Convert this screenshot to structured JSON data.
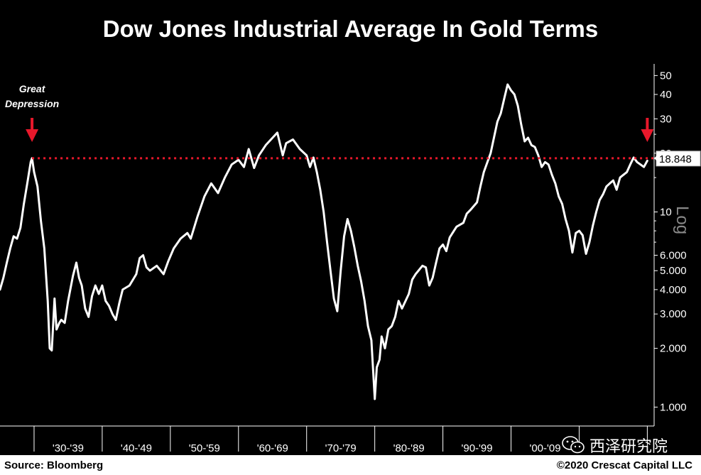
{
  "title": "Dow Jones Industrial Average In Gold Terms",
  "source": "Source: Bloomberg",
  "copyright": "©2020 Crescat Capital LLC",
  "watermark_text": "西泽研究院",
  "colors": {
    "background": "#000000",
    "line": "#ffffff",
    "highlight": "#e8182b",
    "axis": "#ffffff"
  },
  "chart_data": {
    "type": "line",
    "title": "Dow Jones Industrial Average In Gold Terms",
    "y_scale": "log",
    "y_axis_label": "Log",
    "ylim": [
      0.8,
      55
    ],
    "xlim": [
      1925,
      2021
    ],
    "y_ticks": [
      {
        "value": 50,
        "label": "50"
      },
      {
        "value": 40,
        "label": "40"
      },
      {
        "value": 30,
        "label": "30"
      },
      {
        "value": 20,
        "label": "20"
      },
      {
        "value": 10,
        "label": "10"
      },
      {
        "value": 6,
        "label": "6.000"
      },
      {
        "value": 5,
        "label": "5.000"
      },
      {
        "value": 4,
        "label": "4.000"
      },
      {
        "value": 3,
        "label": "3.000"
      },
      {
        "value": 2,
        "label": "2.000"
      },
      {
        "value": 1,
        "label": "1.000"
      }
    ],
    "decade_dividers": [
      1930,
      1940,
      1950,
      1960,
      1970,
      1980,
      1990,
      2000,
      2010,
      2020
    ],
    "decade_labels": [
      {
        "label": "'30-'39",
        "center": 1935
      },
      {
        "label": "'40-'49",
        "center": 1945
      },
      {
        "label": "'50-'59",
        "center": 1955
      },
      {
        "label": "'60-'69",
        "center": 1965
      },
      {
        "label": "'70-'79",
        "center": 1975
      },
      {
        "label": "'80-'89",
        "center": 1985
      },
      {
        "label": "'90-'99",
        "center": 1995
      },
      {
        "label": "'00-'09",
        "center": 2005
      }
    ],
    "reference_line": {
      "value": 18.848,
      "label": "18.848"
    },
    "annotations": [
      {
        "text": "Great Depression",
        "lines": [
          "Great",
          "Depression"
        ],
        "x": 1929.7,
        "arrow": true
      },
      {
        "text": "",
        "lines": [],
        "x": 2020.0,
        "arrow": true
      }
    ],
    "series": [
      {
        "values": [
          [
            1925.0,
            4.0
          ],
          [
            1925.5,
            4.6
          ],
          [
            1926.0,
            5.5
          ],
          [
            1926.5,
            6.5
          ],
          [
            1927.0,
            7.5
          ],
          [
            1927.5,
            7.3
          ],
          [
            1928.0,
            8.3
          ],
          [
            1928.5,
            11.0
          ],
          [
            1929.0,
            14.0
          ],
          [
            1929.5,
            18.0
          ],
          [
            1929.7,
            18.848
          ],
          [
            1930.0,
            16.0
          ],
          [
            1930.5,
            13.5
          ],
          [
            1931.0,
            9.0
          ],
          [
            1931.5,
            6.5
          ],
          [
            1932.0,
            3.5
          ],
          [
            1932.3,
            2.0
          ],
          [
            1932.6,
            1.95
          ],
          [
            1933.0,
            3.6
          ],
          [
            1933.3,
            2.5
          ],
          [
            1933.7,
            2.7
          ],
          [
            1934.0,
            2.8
          ],
          [
            1934.5,
            2.7
          ],
          [
            1935.0,
            3.5
          ],
          [
            1935.7,
            4.7
          ],
          [
            1936.2,
            5.5
          ],
          [
            1936.6,
            4.6
          ],
          [
            1937.0,
            4.2
          ],
          [
            1937.5,
            3.2
          ],
          [
            1938.0,
            2.9
          ],
          [
            1938.5,
            3.7
          ],
          [
            1939.0,
            4.2
          ],
          [
            1939.5,
            3.8
          ],
          [
            1940.0,
            4.2
          ],
          [
            1940.5,
            3.5
          ],
          [
            1941.0,
            3.3
          ],
          [
            1941.5,
            3.0
          ],
          [
            1942.0,
            2.8
          ],
          [
            1942.5,
            3.4
          ],
          [
            1943.0,
            4.0
          ],
          [
            1944.0,
            4.2
          ],
          [
            1945.0,
            4.8
          ],
          [
            1945.5,
            5.8
          ],
          [
            1946.0,
            6.0
          ],
          [
            1946.5,
            5.2
          ],
          [
            1947.0,
            5.0
          ],
          [
            1948.0,
            5.3
          ],
          [
            1949.0,
            4.8
          ],
          [
            1949.7,
            5.6
          ],
          [
            1950.5,
            6.5
          ],
          [
            1951.5,
            7.3
          ],
          [
            1952.5,
            7.8
          ],
          [
            1953.0,
            7.3
          ],
          [
            1954.0,
            9.5
          ],
          [
            1955.0,
            12.0
          ],
          [
            1956.0,
            14.0
          ],
          [
            1957.0,
            12.5
          ],
          [
            1958.0,
            15.0
          ],
          [
            1959.0,
            17.5
          ],
          [
            1960.0,
            18.5
          ],
          [
            1960.8,
            17.0
          ],
          [
            1961.5,
            21.0
          ],
          [
            1962.3,
            16.8
          ],
          [
            1963.0,
            19.5
          ],
          [
            1964.0,
            22.0
          ],
          [
            1965.0,
            24.0
          ],
          [
            1965.7,
            25.5
          ],
          [
            1966.5,
            19.5
          ],
          [
            1967.0,
            22.5
          ],
          [
            1968.0,
            23.5
          ],
          [
            1969.0,
            21.0
          ],
          [
            1970.0,
            19.5
          ],
          [
            1970.5,
            17.0
          ],
          [
            1971.0,
            19.0
          ],
          [
            1971.5,
            16.0
          ],
          [
            1972.0,
            13.0
          ],
          [
            1972.5,
            10.0
          ],
          [
            1973.0,
            7.0
          ],
          [
            1973.5,
            5.0
          ],
          [
            1974.0,
            3.6
          ],
          [
            1974.5,
            3.1
          ],
          [
            1975.0,
            5.0
          ],
          [
            1975.5,
            7.5
          ],
          [
            1976.0,
            9.2
          ],
          [
            1976.5,
            8.0
          ],
          [
            1977.0,
            6.6
          ],
          [
            1977.5,
            5.3
          ],
          [
            1978.0,
            4.4
          ],
          [
            1978.5,
            3.5
          ],
          [
            1979.0,
            2.6
          ],
          [
            1979.5,
            2.2
          ],
          [
            1980.0,
            1.1
          ],
          [
            1980.3,
            1.6
          ],
          [
            1980.7,
            1.75
          ],
          [
            1981.0,
            2.3
          ],
          [
            1981.5,
            2.0
          ],
          [
            1982.0,
            2.5
          ],
          [
            1982.5,
            2.6
          ],
          [
            1983.0,
            2.9
          ],
          [
            1983.5,
            3.5
          ],
          [
            1984.0,
            3.2
          ],
          [
            1985.0,
            3.8
          ],
          [
            1985.5,
            4.5
          ],
          [
            1986.0,
            4.8
          ],
          [
            1987.0,
            5.3
          ],
          [
            1987.5,
            5.2
          ],
          [
            1988.0,
            4.2
          ],
          [
            1988.5,
            4.6
          ],
          [
            1989.0,
            5.5
          ],
          [
            1989.5,
            6.5
          ],
          [
            1990.0,
            6.8
          ],
          [
            1990.5,
            6.3
          ],
          [
            1991.0,
            7.4
          ],
          [
            1992.0,
            8.4
          ],
          [
            1993.0,
            8.8
          ],
          [
            1993.5,
            9.8
          ],
          [
            1994.0,
            10.2
          ],
          [
            1995.0,
            11.2
          ],
          [
            1995.5,
            13.5
          ],
          [
            1996.0,
            16.0
          ],
          [
            1997.0,
            20.0
          ],
          [
            1998.0,
            29.0
          ],
          [
            1998.5,
            32.0
          ],
          [
            1999.0,
            38.0
          ],
          [
            1999.5,
            45.0
          ],
          [
            2000.0,
            42.0
          ],
          [
            2000.5,
            40.0
          ],
          [
            2001.0,
            35.0
          ],
          [
            2001.5,
            28.0
          ],
          [
            2002.0,
            23.0
          ],
          [
            2002.5,
            24.0
          ],
          [
            2003.0,
            22.0
          ],
          [
            2003.5,
            21.5
          ],
          [
            2004.0,
            19.5
          ],
          [
            2004.5,
            17.0
          ],
          [
            2005.0,
            18.0
          ],
          [
            2005.5,
            17.5
          ],
          [
            2006.0,
            15.5
          ],
          [
            2006.5,
            14.0
          ],
          [
            2007.0,
            12.0
          ],
          [
            2007.5,
            11.0
          ],
          [
            2008.0,
            9.2
          ],
          [
            2008.5,
            8.0
          ],
          [
            2009.0,
            6.2
          ],
          [
            2009.5,
            7.8
          ],
          [
            2010.0,
            8.0
          ],
          [
            2010.5,
            7.6
          ],
          [
            2011.0,
            6.1
          ],
          [
            2011.5,
            7.0
          ],
          [
            2012.0,
            8.5
          ],
          [
            2012.5,
            10.0
          ],
          [
            2013.0,
            11.5
          ],
          [
            2013.5,
            12.3
          ],
          [
            2014.0,
            13.5
          ],
          [
            2014.5,
            14.0
          ],
          [
            2015.0,
            14.5
          ],
          [
            2015.5,
            13.0
          ],
          [
            2016.0,
            15.0
          ],
          [
            2016.5,
            15.5
          ],
          [
            2017.0,
            16.0
          ],
          [
            2017.5,
            17.5
          ],
          [
            2018.0,
            19.0
          ],
          [
            2018.5,
            18.0
          ],
          [
            2019.0,
            17.5
          ],
          [
            2019.5,
            17.0
          ],
          [
            2020.0,
            18.3
          ]
        ]
      }
    ]
  }
}
